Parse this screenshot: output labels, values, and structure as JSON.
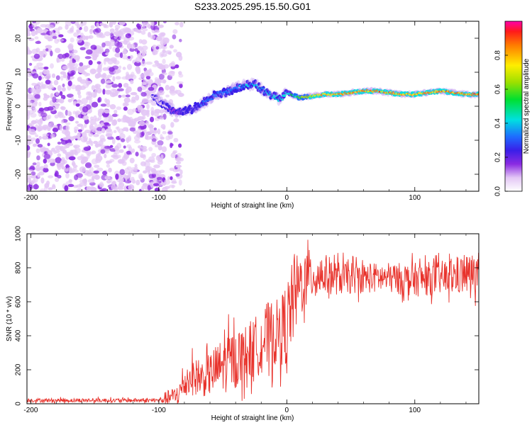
{
  "title": "S233.2025.295.15.50.G01",
  "chart_data": [
    {
      "type": "heatmap",
      "xlabel": "Height of straight line (km)",
      "ylabel": "Frequency (Hz)",
      "xlim": [
        -203,
        150
      ],
      "ylim": [
        -25,
        25
      ],
      "xticks": [
        -200,
        -100,
        0,
        100
      ],
      "yticks": [
        -20,
        -10,
        0,
        10,
        20
      ],
      "colorbar": {
        "label": "Normalized spectral amplitude",
        "range": [
          0,
          1
        ],
        "ticks": [
          0.0,
          0.2,
          0.4,
          0.6,
          0.8
        ]
      },
      "ridge": {
        "description_points_x_km": [
          -105,
          -95,
          -85,
          -75,
          -65,
          -55,
          -45,
          -35,
          -25,
          -15,
          -5,
          0,
          10,
          20,
          30,
          40,
          50,
          60,
          70,
          80,
          90,
          100,
          110,
          120,
          130,
          140,
          150
        ],
        "frequency_hz": [
          3.0,
          0.0,
          -2.0,
          -1.0,
          1.0,
          3.5,
          4.5,
          6.0,
          6.5,
          4.0,
          2.0,
          4.0,
          2.5,
          3.0,
          3.5,
          3.5,
          4.0,
          4.5,
          4.5,
          4.0,
          3.5,
          3.5,
          4.0,
          4.5,
          4.0,
          3.5,
          3.5
        ],
        "amplitude": [
          0.1,
          0.15,
          0.25,
          0.3,
          0.35,
          0.4,
          0.4,
          0.45,
          0.45,
          0.45,
          0.5,
          0.5,
          0.65,
          0.8,
          0.9,
          0.92,
          0.95,
          0.95,
          0.95,
          0.95,
          0.92,
          0.9,
          0.92,
          0.95,
          0.95,
          0.95,
          0.95
        ]
      },
      "noise_region_x_km": [
        -203,
        -90
      ]
    },
    {
      "type": "line",
      "xlabel": "Height of straight line (km)",
      "ylabel": "SNR (10 * v/v)",
      "xlim": [
        -203,
        150
      ],
      "ylim": [
        0,
        1000
      ],
      "xticks": [
        -200,
        -100,
        0,
        100
      ],
      "yticks": [
        0,
        200,
        400,
        600,
        800,
        1000
      ],
      "series_color": "#e8322b",
      "envelope": {
        "x_km": [
          -203,
          -100,
          -95,
          -85,
          -80,
          -75,
          -65,
          -55,
          -45,
          -35,
          -25,
          -15,
          -5,
          0,
          5,
          10,
          20,
          30,
          40,
          60,
          80,
          100,
          120,
          140,
          150
        ],
        "snr_mean": [
          20,
          20,
          30,
          50,
          120,
          160,
          150,
          200,
          250,
          280,
          330,
          400,
          420,
          480,
          600,
          700,
          760,
          760,
          740,
          740,
          740,
          730,
          740,
          760,
          770
        ],
        "snr_spread": [
          12,
          12,
          40,
          60,
          100,
          110,
          110,
          150,
          180,
          170,
          180,
          200,
          200,
          250,
          250,
          200,
          150,
          120,
          100,
          90,
          90,
          100,
          100,
          120,
          120
        ]
      }
    }
  ]
}
